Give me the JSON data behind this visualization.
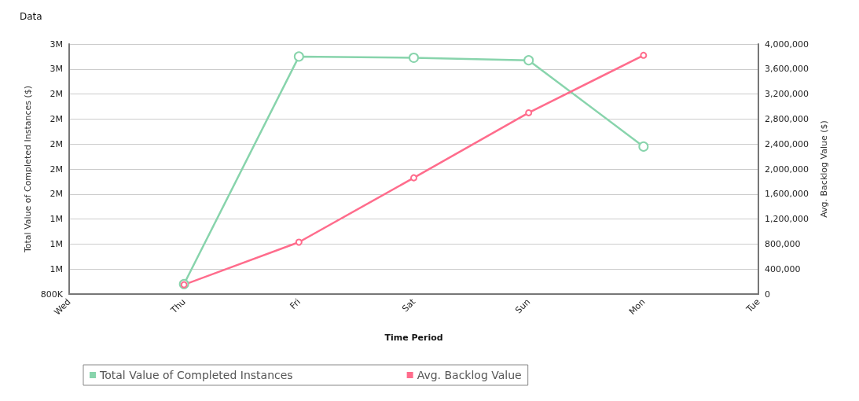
{
  "chart_data": {
    "type": "line",
    "title": "Data",
    "xlabel": "Time Period",
    "ylabel": "Total Value of Completed Instances ($)",
    "y2label": "Avg. Backlog Value ($)",
    "categories": [
      "Wed",
      "Thu",
      "Fri",
      "Sat",
      "Sun",
      "Mon",
      "Tue"
    ],
    "series": [
      {
        "name": "Total Value of Completed Instances",
        "color": "#88d4ac",
        "values": [
          null,
          880000,
          2700000,
          2690000,
          2670000,
          1980000,
          null
        ]
      },
      {
        "name": "Avg. Backlog Value",
        "color": "#ff6c8c",
        "axis": "y2",
        "values": [
          null,
          150000,
          830000,
          1860000,
          2900000,
          3820000,
          null
        ]
      }
    ],
    "ylim": [
      800000,
      2800000
    ],
    "yticks": [
      {
        "value": 800000,
        "label": "800K"
      },
      {
        "value": 1000000,
        "label": "1M"
      },
      {
        "value": 1200000,
        "label": "1M"
      },
      {
        "value": 1400000,
        "label": "1M"
      },
      {
        "value": 1600000,
        "label": "2M"
      },
      {
        "value": 1800000,
        "label": "2M"
      },
      {
        "value": 2000000,
        "label": "2M"
      },
      {
        "value": 2200000,
        "label": "2M"
      },
      {
        "value": 2400000,
        "label": "2M"
      },
      {
        "value": 2600000,
        "label": "3M"
      },
      {
        "value": 2800000,
        "label": "3M"
      }
    ],
    "y2lim": [
      0,
      4000000
    ],
    "y2ticks": [
      {
        "value": 0,
        "label": "0"
      },
      {
        "value": 400000,
        "label": "400,000"
      },
      {
        "value": 800000,
        "label": "800,000"
      },
      {
        "value": 1200000,
        "label": "1,200,000"
      },
      {
        "value": 1600000,
        "label": "1,600,000"
      },
      {
        "value": 2000000,
        "label": "2,000,000"
      },
      {
        "value": 2400000,
        "label": "2,400,000"
      },
      {
        "value": 2800000,
        "label": "2,800,000"
      },
      {
        "value": 3200000,
        "label": "3,200,000"
      },
      {
        "value": 3600000,
        "label": "3,600,000"
      },
      {
        "value": 4000000,
        "label": "4,000,000"
      }
    ],
    "grid": "y",
    "legend": "bottom",
    "marker": "circle",
    "line_style": "solid"
  }
}
